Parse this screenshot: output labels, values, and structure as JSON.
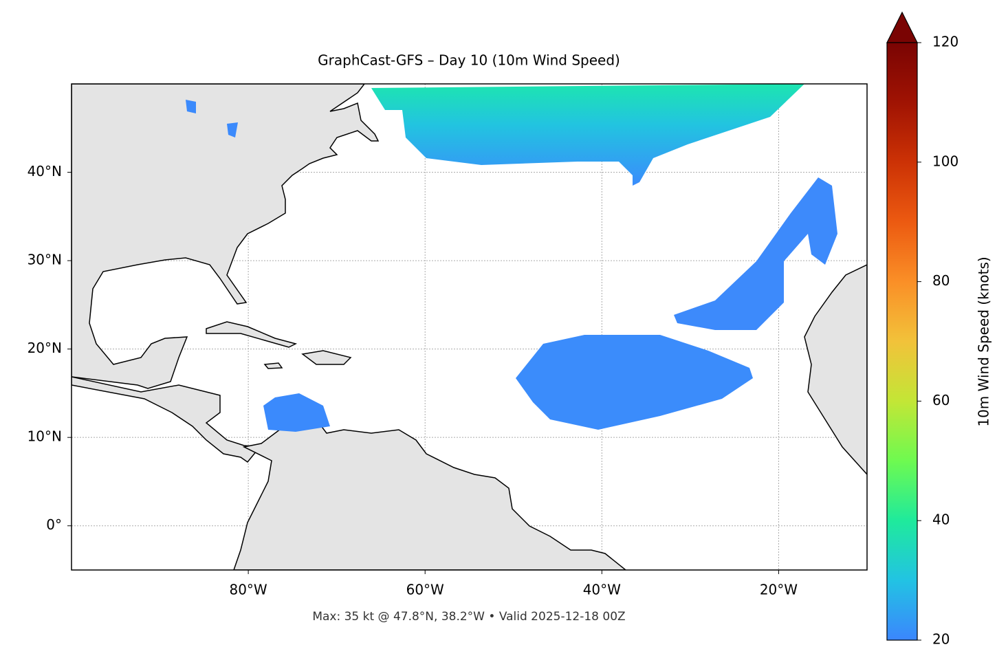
{
  "title": "GraphCast-GFS – Day 10 (10m Wind Speed)",
  "map": {
    "xlim": [
      -100,
      -10
    ],
    "ylim": [
      -5,
      50
    ],
    "xticks": [
      {
        "value": -80,
        "label": "80°W"
      },
      {
        "value": -60,
        "label": "60°W"
      },
      {
        "value": -40,
        "label": "40°W"
      },
      {
        "value": -20,
        "label": "20°W"
      }
    ],
    "yticks": [
      {
        "value": 0,
        "label": "0°"
      },
      {
        "value": 10,
        "label": "10°N"
      },
      {
        "value": 20,
        "label": "20°N"
      },
      {
        "value": 30,
        "label": "30°N"
      },
      {
        "value": 40,
        "label": "40°N"
      }
    ]
  },
  "colorbar": {
    "label": "10m Wind Speed (knots)",
    "lim": [
      20,
      120
    ],
    "ticks": [
      20,
      40,
      60,
      80,
      100,
      120
    ]
  },
  "footer": "Max: 35 kt @ 47.8°N, 38.2°W • Valid 2025-12-18 00Z"
}
